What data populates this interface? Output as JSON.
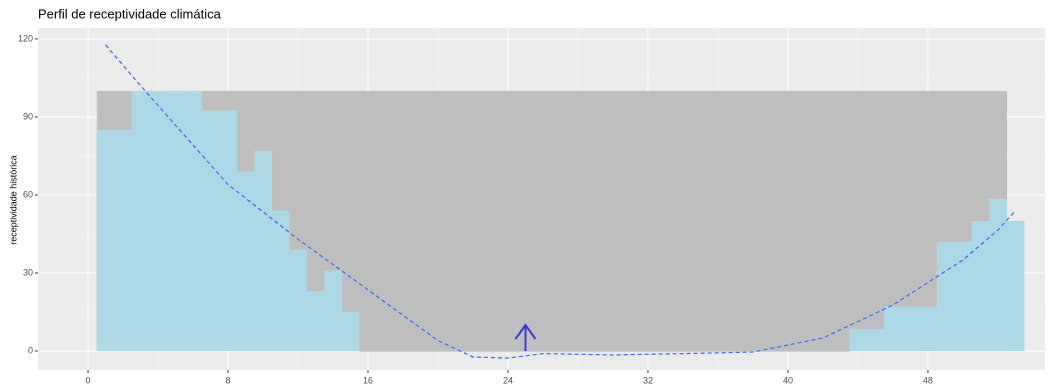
{
  "chart_data": {
    "type": "bar",
    "title": "Perfil de receptividade climática",
    "y_label": "receptividade histórica",
    "xlim": [
      -2.86,
      54.69
    ],
    "ylim": [
      -7.3,
      124.2
    ],
    "xticks": [
      0,
      8,
      16,
      24,
      32,
      40,
      48
    ],
    "yticks": [
      0,
      30,
      60,
      90,
      120
    ],
    "grid": true,
    "series": [
      {
        "color": "#bebebe",
        "x": [
          1,
          2,
          3,
          4,
          5,
          6,
          7,
          8,
          9,
          10,
          11,
          12,
          13,
          14,
          15,
          16,
          17,
          18,
          19,
          20,
          21,
          22,
          23,
          24,
          25,
          26,
          27,
          28,
          29,
          30,
          31,
          32,
          33,
          34,
          35,
          36,
          37,
          38,
          39,
          40,
          41,
          42,
          43,
          44,
          45,
          46,
          47,
          48,
          49,
          50,
          51,
          52
        ],
        "values": [
          100,
          100,
          100,
          100,
          100,
          100,
          100,
          100,
          100,
          100,
          100,
          100,
          100,
          100,
          100,
          100,
          100,
          100,
          100,
          100,
          100,
          100,
          100,
          100,
          100,
          100,
          100,
          100,
          100,
          100,
          100,
          100,
          100,
          100,
          100,
          100,
          100,
          100,
          100,
          100,
          100,
          100,
          100,
          100,
          100,
          100,
          100,
          100,
          100,
          100,
          100,
          100
        ]
      },
      {
        "color": "#add8e6",
        "x": [
          1,
          2,
          3,
          4,
          5,
          6,
          7,
          8,
          9,
          10,
          11,
          12,
          13,
          14,
          15,
          16,
          17,
          18,
          19,
          20,
          21,
          22,
          23,
          24,
          25,
          26,
          27,
          28,
          29,
          30,
          31,
          32,
          33,
          34,
          35,
          36,
          37,
          38,
          39,
          40,
          41,
          42,
          43,
          44,
          45,
          46,
          47,
          48,
          49,
          50,
          51,
          52,
          53
        ],
        "values": [
          85,
          85,
          100,
          100,
          100,
          100,
          92.5,
          92.5,
          69,
          77,
          54,
          39,
          23,
          31,
          15,
          0,
          0,
          0,
          0,
          0,
          0,
          0,
          0,
          0,
          0,
          0,
          0,
          0,
          0,
          0,
          0,
          0,
          0,
          0,
          0,
          0,
          0,
          0,
          0,
          0,
          0,
          0,
          0,
          8.5,
          8.5,
          17,
          17,
          17,
          42,
          42,
          50,
          58.5,
          50
        ]
      }
    ],
    "trend": {
      "color": "#3366ff",
      "x": [
        1,
        3,
        8,
        12,
        16,
        20,
        22,
        24,
        26,
        30,
        34,
        38,
        42,
        46,
        50,
        52,
        53
      ],
      "values": [
        117.7,
        102,
        64,
        43,
        23.5,
        4,
        -2.3,
        -2.7,
        -1,
        -1.5,
        -1,
        -0.4,
        5,
        17.7,
        35,
        46.5,
        54
      ]
    },
    "arrow": {
      "color": "#3a3ad6",
      "x": 25,
      "y": [
        0,
        10
      ]
    }
  }
}
